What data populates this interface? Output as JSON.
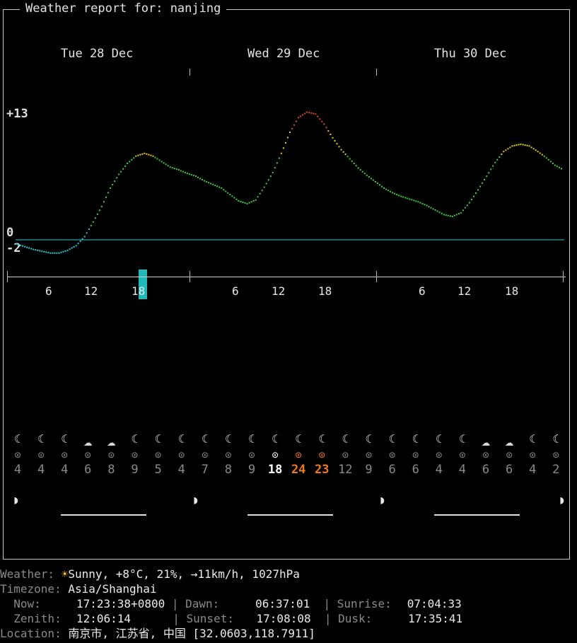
{
  "title": "Weather report for: nanjing",
  "days": [
    "Tue 28 Dec",
    "Wed 29 Dec",
    "Thu 30 Dec"
  ],
  "y_labels": {
    "max": "+13",
    "zero": "0",
    "min": "-2"
  },
  "hours": [
    "6",
    "12",
    "18",
    "6",
    "12",
    "18",
    "6",
    "12",
    "18"
  ],
  "current_hour_marker": "18",
  "chart_data": {
    "type": "line",
    "title": "",
    "xlabel": "",
    "ylabel": "",
    "x_unit": "hour",
    "ylim": [
      -2,
      13
    ],
    "series": [
      {
        "values": [
          -1.6,
          -1.9,
          -2.2,
          -2.4,
          -2.6,
          -2.6,
          -2.3,
          -1.8,
          -0.8,
          0.8,
          2.5,
          4.5,
          6.0,
          7.2,
          8.0,
          8.3,
          8.0,
          7.4,
          6.8,
          6.5,
          6.1,
          5.8,
          5.3,
          4.9,
          4.5,
          3.8,
          3.1,
          2.8,
          3.2,
          4.6,
          6.2,
          8.3,
          10.6,
          12.2,
          12.8,
          12.6,
          11.5,
          10.0,
          8.7,
          7.7,
          6.7,
          5.9,
          5.2,
          4.5,
          4.0,
          3.6,
          3.3,
          3.0,
          2.6,
          2.1,
          1.6,
          1.4,
          1.8,
          2.9,
          4.3,
          5.8,
          7.3,
          8.5,
          9.1,
          9.3,
          9.1,
          8.5,
          7.8,
          7.0,
          6.5
        ]
      }
    ],
    "hour_ticks": [
      6,
      12,
      18,
      30,
      36,
      42,
      54,
      60,
      66
    ]
  },
  "icons": [
    "moon-icon",
    "moon-icon",
    "moon-icon",
    "cloud-icon",
    "cloud-icon",
    "moon-icon",
    "moon-icon",
    "moon-icon",
    "moon-icon",
    "moon-icon",
    "moon-icon",
    "moon-icon",
    "moon-icon",
    "moon-icon",
    "moon-icon",
    "moon-icon",
    "moon-icon",
    "moon-icon",
    "moon-icon",
    "moon-icon",
    "cloud-icon",
    "cloud-icon",
    "moon-icon",
    "moon-icon"
  ],
  "wind_values": [
    "4",
    "4",
    "4",
    "6",
    "8",
    "9",
    "5",
    "4",
    "7",
    "8",
    "9",
    "18",
    "24",
    "23",
    "12",
    "9",
    "6",
    "6",
    "4",
    "4",
    "6",
    "6",
    "4",
    "2"
  ],
  "wind_colors": [
    "#8a8a8a",
    "#8a8a8a",
    "#8a8a8a",
    "#8a8a8a",
    "#8a8a8a",
    "#8a8a8a",
    "#8a8a8a",
    "#8a8a8a",
    "#8a8a8a",
    "#8a8a8a",
    "#8a8a8a",
    "#ffffff",
    "#f07a1a",
    "#f07a1a",
    "#8a8a8a",
    "#8a8a8a",
    "#8a8a8a",
    "#8a8a8a",
    "#8a8a8a",
    "#8a8a8a",
    "#8a8a8a",
    "#8a8a8a",
    "#8a8a8a",
    "#8a8a8a"
  ],
  "moon_glyph": "◗",
  "info": {
    "weather_key": "Weather:",
    "weather_icon": "☀",
    "weather_val": "Sunny, +8°C, 21%, →11km/h, 1027hPa",
    "timezone_key": "Timezone:",
    "timezone_val": "Asia/Shanghai",
    "now_key": "  Now:",
    "now_val": "17:23:38+0800",
    "dawn_key": "Dawn:",
    "dawn_val": "06:37:01",
    "sunrise_key": "Sunrise:",
    "sunrise_val": "07:04:33",
    "zenith_key": "  Zenith:",
    "zenith_val": "12:06:14",
    "sunset_key": "Sunset:",
    "sunset_val": "17:08:08",
    "dusk_key": "Dusk:",
    "dusk_val": "17:35:41",
    "location_key": "Location:",
    "location_val": "南京市, 江苏省, 中国 [32.0603,118.7911]"
  },
  "colors": {
    "cold": "#29c9d8",
    "cool": "#40d040",
    "warm": "#e8d020",
    "hot": "#e04a20",
    "accent": "#21b8b8"
  }
}
